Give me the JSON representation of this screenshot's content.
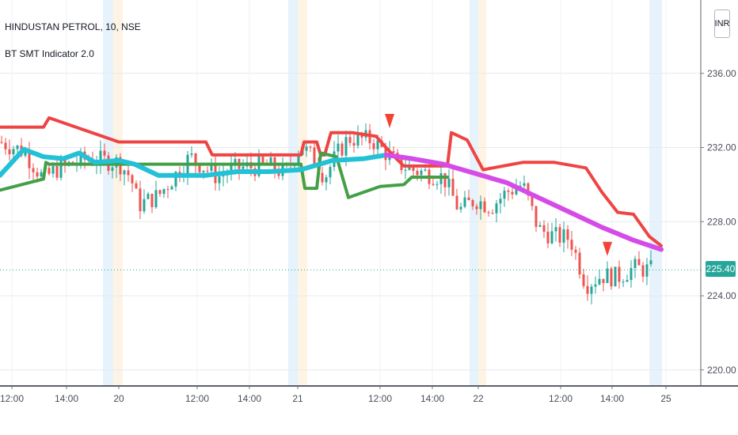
{
  "header": {
    "symbol": "HINDUSTAN PETROL, 10, NSE",
    "indicator": "BT SMT Indicator 2.0"
  },
  "currency_badge": "INR",
  "last_price_label": "225.40",
  "colors": {
    "upper_band": "#ef4444",
    "lower_band": "#43a047",
    "ma_bull": "#22c1d6",
    "ma_bear": "#d54be8",
    "candle_up": "#26a69a",
    "candle_down": "#ef5350",
    "signal": "#f44336",
    "session_blue": "#e3f2fd",
    "session_orange": "#fff3e0",
    "last_price_line": "#26a69a"
  },
  "chart_data": {
    "type": "candlestick",
    "title": "HINDUSTAN PETROL, 10, NSE",
    "indicator": "BT SMT Indicator 2.0",
    "ylim": [
      219,
      238
    ],
    "y_ticks": [
      "220.00",
      "224.00",
      "228.00",
      "232.00",
      "236.00"
    ],
    "x_tick_labels": [
      "12:00",
      "14:00",
      "20",
      "12:00",
      "14:00",
      "21",
      "12:00",
      "14:00",
      "22",
      "12:00",
      "14:00",
      "25"
    ],
    "grid": true,
    "last_price": 225.4,
    "sessions": [
      {
        "label": "20",
        "color": "blue"
      },
      {
        "label": "20",
        "color": "orange"
      },
      {
        "label": "21",
        "color": "blue"
      },
      {
        "label": "21",
        "color": "orange"
      },
      {
        "label": "22",
        "color": "blue"
      },
      {
        "label": "22",
        "color": "orange"
      },
      {
        "label": "25",
        "color": "blue"
      }
    ],
    "upper_band": [
      [
        0,
        233.1
      ],
      [
        55,
        233.1
      ],
      [
        62,
        233.6
      ],
      [
        150,
        232.3
      ],
      [
        160,
        232.3
      ],
      [
        240,
        232.3
      ],
      [
        260,
        232.3
      ],
      [
        268,
        231.6
      ],
      [
        380,
        231.6
      ],
      [
        384,
        232.3
      ],
      [
        400,
        232.3
      ],
      [
        405,
        231.6
      ],
      [
        410,
        231.6
      ],
      [
        418,
        232.8
      ],
      [
        445,
        232.8
      ],
      [
        475,
        232.6
      ],
      [
        498,
        231.5
      ],
      [
        510,
        231.0
      ],
      [
        565,
        231.0
      ],
      [
        570,
        232.8
      ],
      [
        590,
        232.4
      ],
      [
        610,
        230.8
      ],
      [
        660,
        231.2
      ],
      [
        700,
        231.2
      ],
      [
        740,
        230.9
      ],
      [
        760,
        229.6
      ],
      [
        780,
        228.5
      ],
      [
        800,
        228.4
      ],
      [
        820,
        227.2
      ],
      [
        835,
        226.7
      ]
    ],
    "lower_band": [
      [
        0,
        229.7
      ],
      [
        55,
        230.3
      ],
      [
        58,
        231.2
      ],
      [
        62,
        231.1
      ],
      [
        380,
        231.1
      ],
      [
        385,
        229.8
      ],
      [
        400,
        229.8
      ],
      [
        405,
        231.7
      ],
      [
        425,
        231.5
      ],
      [
        440,
        229.3
      ],
      [
        480,
        229.9
      ],
      [
        510,
        230.0
      ],
      [
        520,
        230.4
      ],
      [
        565,
        230.4
      ]
    ],
    "ma_bull": [
      [
        0,
        230.5
      ],
      [
        30,
        231.9
      ],
      [
        55,
        231.5
      ],
      [
        80,
        231.4
      ],
      [
        100,
        231.7
      ],
      [
        120,
        231.2
      ],
      [
        150,
        231.3
      ],
      [
        170,
        231.1
      ],
      [
        200,
        230.5
      ],
      [
        260,
        230.5
      ],
      [
        300,
        230.7
      ],
      [
        340,
        230.7
      ],
      [
        380,
        230.8
      ],
      [
        420,
        231.3
      ],
      [
        460,
        231.4
      ],
      [
        488,
        231.6
      ]
    ],
    "ma_bear": [
      [
        488,
        231.6
      ],
      [
        520,
        231.4
      ],
      [
        560,
        231.1
      ],
      [
        600,
        230.6
      ],
      [
        640,
        230.1
      ],
      [
        680,
        229.3
      ],
      [
        720,
        228.5
      ],
      [
        760,
        227.7
      ],
      [
        800,
        227.0
      ],
      [
        835,
        226.5
      ]
    ],
    "signals": [
      {
        "x": 492,
        "price": 233.3,
        "type": "sell"
      },
      {
        "x": 767,
        "price": 226.4,
        "type": "sell"
      }
    ]
  }
}
